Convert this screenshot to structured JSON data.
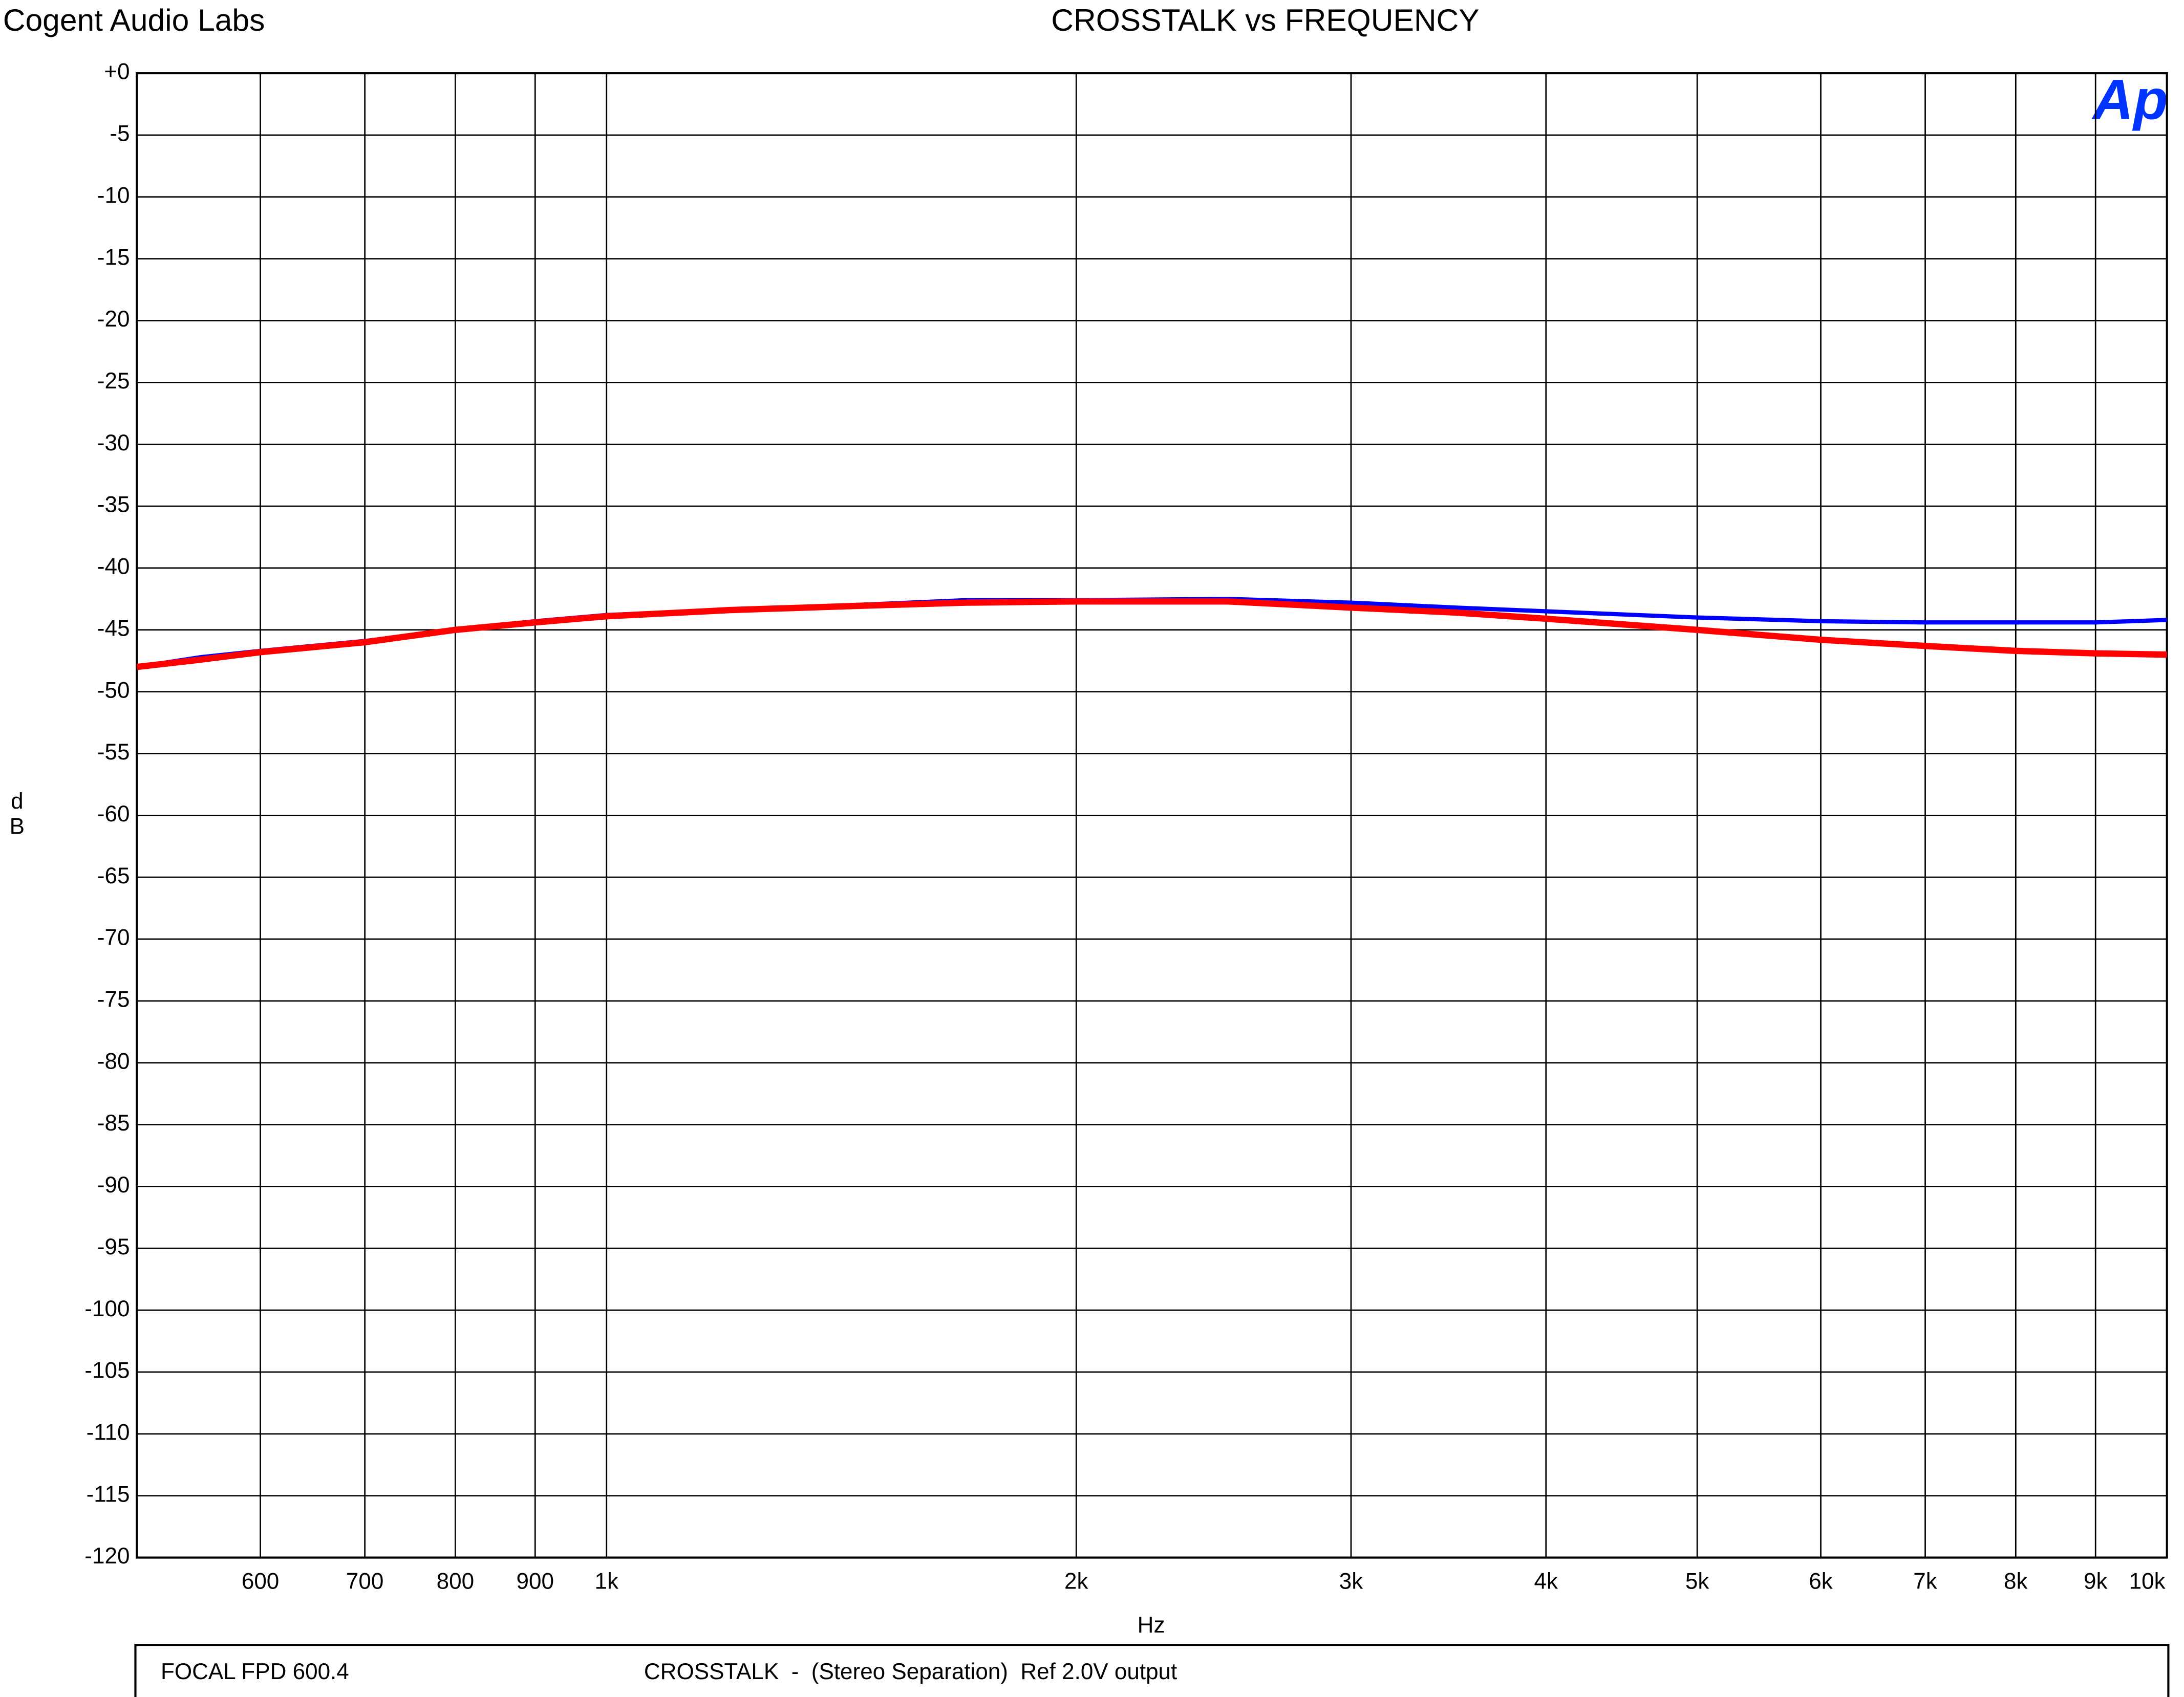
{
  "header": {
    "company": "Cogent Audio Labs",
    "logo": "Ap"
  },
  "chart_data": {
    "type": "line",
    "title": "CROSSTALK vs FREQUENCY",
    "xlabel": "Hz",
    "ylabel": "dB",
    "log_x": true,
    "grid": true,
    "xlim": [
      500,
      10000
    ],
    "xticks": [
      600,
      700,
      800,
      900,
      {
        "value": 1000,
        "label": "1k"
      },
      {
        "value": 2000,
        "label": "2k"
      },
      {
        "value": 3000,
        "label": "3k"
      },
      {
        "value": 4000,
        "label": "4k"
      },
      {
        "value": 5000,
        "label": "5k"
      },
      {
        "value": 6000,
        "label": "6k"
      },
      {
        "value": 7000,
        "label": "7k"
      },
      {
        "value": 8000,
        "label": "8k"
      },
      {
        "value": 9000,
        "label": "9k"
      },
      {
        "value": 10000,
        "label": "10k"
      }
    ],
    "ylim": [
      -120,
      0
    ],
    "yticks": [
      {
        "value": 0,
        "label": "+0"
      },
      -5,
      -10,
      -15,
      -20,
      -25,
      -30,
      -35,
      -40,
      -45,
      -50,
      -55,
      -60,
      -65,
      -70,
      -75,
      -80,
      -85,
      -90,
      -95,
      -100,
      -105,
      -110,
      -115,
      -120
    ],
    "x": [
      500,
      550,
      600,
      700,
      800,
      900,
      1000,
      1200,
      1500,
      1700,
      2000,
      2500,
      3000,
      3500,
      4000,
      5000,
      6000,
      7000,
      8000,
      9000,
      10000
    ],
    "series": [
      {
        "color": "#0000ff",
        "values": [
          -48.0,
          -47.2,
          -46.7,
          -45.9,
          -45.0,
          -44.3,
          -43.8,
          -43.4,
          -42.9,
          -42.6,
          -42.6,
          -42.5,
          -42.8,
          -43.2,
          -43.5,
          -44.0,
          -44.3,
          -44.4,
          -44.4,
          -44.4,
          -44.2
        ]
      },
      {
        "color": "#ff0000",
        "values": [
          -48.0,
          -47.4,
          -46.8,
          -46.0,
          -45.0,
          -44.4,
          -43.9,
          -43.4,
          -43.0,
          -42.8,
          -42.7,
          -42.7,
          -43.2,
          -43.6,
          -44.1,
          -45.0,
          -45.8,
          -46.3,
          -46.7,
          -46.9,
          -47.0
        ]
      }
    ]
  },
  "footer": {
    "device": "FOCAL FPD 600.4",
    "description": "CROSSTALK  -  (Stereo Separation)  Ref 2.0V output"
  }
}
